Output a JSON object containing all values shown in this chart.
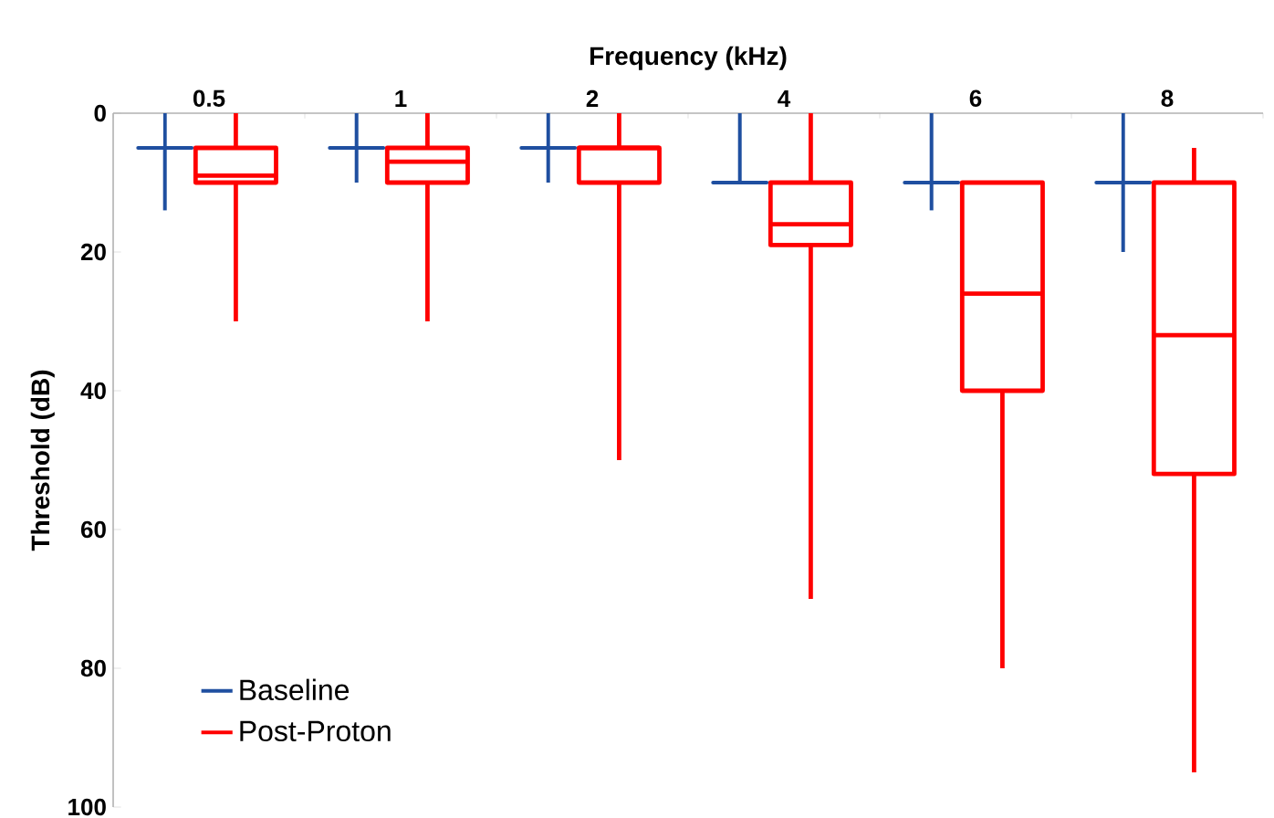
{
  "chart_data": {
    "type": "box",
    "xlabel": "Frequency (kHz)",
    "ylabel": "Threshold (dB)",
    "categories": [
      "0.5",
      "1",
      "2",
      "4",
      "6",
      "8"
    ],
    "ylim": [
      100,
      0
    ],
    "yticks": [
      0,
      20,
      40,
      60,
      80,
      100
    ],
    "legend": "bottom left",
    "grid": false,
    "series": [
      {
        "name": "Baseline",
        "color": "#1f4fa0",
        "boxes": [
          {
            "low": 0,
            "q1": 5,
            "median": 5,
            "q3": 5,
            "high": 14
          },
          {
            "low": 0,
            "q1": 5,
            "median": 5,
            "q3": 5,
            "high": 10
          },
          {
            "low": 0,
            "q1": 5,
            "median": 5,
            "q3": 5,
            "high": 10
          },
          {
            "low": 0,
            "q1": 10,
            "median": 10,
            "q3": 10,
            "high": 10
          },
          {
            "low": 0,
            "q1": 10,
            "median": 10,
            "q3": 10,
            "high": 14
          },
          {
            "low": 0,
            "q1": 10,
            "median": 10,
            "q3": 10,
            "high": 20
          }
        ]
      },
      {
        "name": "Post-Proton",
        "color": "#ff0000",
        "boxes": [
          {
            "low": 0,
            "q1": 5,
            "median": 9,
            "q3": 10,
            "high": 30
          },
          {
            "low": 0,
            "q1": 5,
            "median": 7,
            "q3": 10,
            "high": 30
          },
          {
            "low": 0,
            "q1": 5,
            "median": 5,
            "q3": 10,
            "high": 50
          },
          {
            "low": 0,
            "q1": 10,
            "median": 16,
            "q3": 19,
            "high": 70
          },
          {
            "low": 10,
            "q1": 10,
            "median": 26,
            "q3": 40,
            "high": 80
          },
          {
            "low": 5,
            "q1": 10,
            "median": 32,
            "q3": 52,
            "high": 95
          }
        ]
      }
    ]
  }
}
